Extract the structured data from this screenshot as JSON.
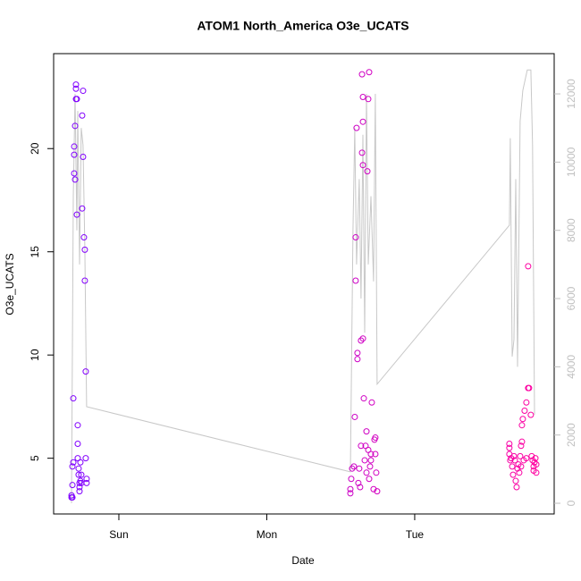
{
  "chart_data": {
    "type": "scatter",
    "title": "ATOM1 North_America O3e_UCATS",
    "x_label": "Date",
    "y_label": "O3e_UCATS",
    "xlim": [
      -0.441,
      2.943
    ],
    "xticks": [
      {
        "value": 0,
        "label": "Sun"
      },
      {
        "value": 1,
        "label": "Mon"
      },
      {
        "value": 2,
        "label": "Tue"
      }
    ],
    "ylim": [
      2.3,
      24.6
    ],
    "yticks": [
      5,
      10,
      15,
      20
    ],
    "y2lim": [
      -314,
      13180
    ],
    "y2ticks": [
      0,
      2000,
      4000,
      6000,
      8000,
      10000,
      12000
    ],
    "y2_color": "#c0c0c0",
    "point_colors": [
      "#7f00ff",
      "#ff00a0"
    ],
    "points": {
      "x": [
        -0.32,
        -0.32,
        -0.314,
        -0.314,
        -0.314,
        -0.308,
        -0.308,
        -0.302,
        -0.302,
        -0.302,
        -0.296,
        -0.296,
        -0.29,
        -0.29,
        -0.29,
        -0.284,
        -0.284,
        -0.278,
        -0.278,
        -0.278,
        -0.272,
        -0.272,
        -0.266,
        -0.266,
        -0.266,
        -0.26,
        -0.26,
        -0.254,
        -0.254,
        -0.248,
        -0.248,
        -0.242,
        -0.242,
        -0.236,
        -0.23,
        -0.23,
        -0.224,
        -0.224,
        -0.218,
        -0.218,
        1.565,
        1.565,
        1.571,
        1.577,
        1.589,
        1.595,
        1.601,
        1.601,
        1.607,
        1.613,
        1.613,
        1.619,
        1.625,
        1.631,
        1.637,
        1.637,
        1.644,
        1.644,
        1.65,
        1.65,
        1.65,
        1.65,
        1.656,
        1.662,
        1.668,
        1.674,
        1.674,
        1.68,
        1.686,
        1.686,
        1.692,
        1.692,
        1.698,
        1.704,
        1.704,
        1.71,
        1.722,
        1.728,
        1.734,
        1.734,
        1.74,
        1.746,
        2.64,
        2.64,
        2.64,
        2.646,
        2.652,
        2.659,
        2.665,
        2.671,
        2.677,
        2.683,
        2.689,
        2.695,
        2.701,
        2.707,
        2.713,
        2.719,
        2.719,
        2.725,
        2.725,
        2.731,
        2.737,
        2.743,
        2.755,
        2.755,
        2.767,
        2.767,
        2.773,
        2.785,
        2.791,
        2.797,
        2.804,
        2.804,
        2.81,
        2.816,
        2.822,
        2.822
      ],
      "y": [
        3.1,
        3.2,
        3.1,
        3.7,
        4.6,
        4.8,
        7.9,
        19.7,
        20.1,
        18.8,
        18.5,
        21.1,
        23.1,
        22.4,
        22.9,
        16.8,
        22.4,
        6.6,
        5.7,
        5.0,
        4.5,
        4.2,
        3.8,
        3.4,
        3.6,
        3.9,
        4.8,
        4.2,
        3.8,
        17.1,
        21.6,
        22.8,
        19.6,
        15.7,
        15.1,
        13.6,
        9.2,
        5.0,
        3.8,
        4.0,
        3.3,
        3.5,
        4.0,
        4.5,
        4.6,
        7.0,
        15.7,
        13.6,
        21.0,
        9.8,
        10.1,
        3.8,
        4.5,
        3.6,
        5.6,
        10.7,
        23.6,
        19.8,
        19.2,
        21.3,
        10.8,
        22.5,
        7.9,
        4.9,
        5.6,
        6.3,
        4.3,
        18.9,
        22.4,
        5.4,
        23.7,
        4.0,
        4.6,
        5.2,
        4.9,
        7.7,
        3.5,
        5.9,
        6.0,
        5.2,
        4.3,
        3.4,
        5.7,
        5.5,
        5.2,
        4.9,
        5.0,
        4.6,
        4.2,
        5.1,
        4.9,
        3.9,
        3.6,
        4.5,
        4.7,
        4.3,
        5.1,
        5.6,
        4.6,
        5.8,
        6.6,
        6.9,
        4.9,
        7.3,
        7.7,
        5.0,
        14.3,
        8.4,
        8.4,
        7.1,
        5.1,
        4.9,
        4.6,
        4.4,
        4.8,
        5.0,
        4.7,
        4.3
      ]
    },
    "line": {
      "axis": "y2",
      "color": "#c8c8c8",
      "x": [
        -0.32,
        -0.308,
        -0.296,
        -0.284,
        -0.278,
        -0.266,
        -0.254,
        -0.242,
        -0.23,
        -0.218,
        1.565,
        1.583,
        1.595,
        1.607,
        1.625,
        1.637,
        1.65,
        1.662,
        1.674,
        1.686,
        1.704,
        1.722,
        1.734,
        1.746,
        2.64,
        2.646,
        2.659,
        2.671,
        2.683,
        2.695,
        2.713,
        2.731,
        2.761,
        2.785,
        2.797,
        2.81
      ],
      "values": [
        0,
        9000,
        12000,
        8000,
        11500,
        7000,
        11000,
        10500,
        7500,
        2830,
        920,
        8000,
        11000,
        7000,
        9500,
        6000,
        10800,
        5000,
        12000,
        7000,
        9000,
        6500,
        12000,
        3490,
        8150,
        10700,
        4300,
        4800,
        9500,
        4000,
        11200,
        12100,
        12700,
        12700,
        10500,
        2600
      ]
    }
  }
}
